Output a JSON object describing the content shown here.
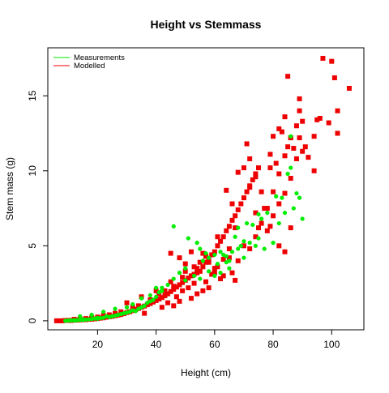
{
  "chart_data": {
    "type": "scatter",
    "title": "Height vs Stemmass",
    "xlabel": "Height (cm)",
    "ylabel": "Stem mass (g)",
    "xlim": [
      3,
      111
    ],
    "ylim": [
      -0.6,
      18.2
    ],
    "x_ticks": [
      20,
      40,
      60,
      80,
      100
    ],
    "x_tick_labels": [
      "20",
      "40",
      "60",
      "80",
      "100"
    ],
    "y_ticks": [
      0,
      5,
      10,
      15
    ],
    "y_tick_labels": [
      "0",
      "5",
      "10",
      "15"
    ],
    "grid": false,
    "legend_position": "top-left",
    "series": [
      {
        "name": "Measurements",
        "color": "#00ee00",
        "marker": "circle",
        "points": [
          [
            9,
            0.0
          ],
          [
            10,
            0.02
          ],
          [
            11,
            0.03
          ],
          [
            12,
            0.02
          ],
          [
            12,
            0.05
          ],
          [
            13,
            0.04
          ],
          [
            14,
            0.06
          ],
          [
            15,
            0.05
          ],
          [
            15,
            0.1
          ],
          [
            16,
            0.08
          ],
          [
            17,
            0.1
          ],
          [
            18,
            0.12
          ],
          [
            19,
            0.15
          ],
          [
            20,
            0.14
          ],
          [
            20,
            0.2
          ],
          [
            21,
            0.18
          ],
          [
            22,
            0.2
          ],
          [
            23,
            0.3
          ],
          [
            24,
            0.25
          ],
          [
            25,
            0.3
          ],
          [
            26,
            0.35
          ],
          [
            27,
            0.4
          ],
          [
            28,
            0.45
          ],
          [
            29,
            0.5
          ],
          [
            30,
            0.55
          ],
          [
            31,
            0.6
          ],
          [
            32,
            0.7
          ],
          [
            33,
            0.65
          ],
          [
            34,
            0.8
          ],
          [
            35,
            0.9
          ],
          [
            36,
            1.0
          ],
          [
            37,
            1.2
          ],
          [
            38,
            1.3
          ],
          [
            39,
            1.4
          ],
          [
            40,
            1.6
          ],
          [
            41,
            1.9
          ],
          [
            42,
            2.2
          ],
          [
            44,
            2.4
          ],
          [
            46,
            2.8
          ],
          [
            46,
            6.3
          ],
          [
            48,
            3.2
          ],
          [
            50,
            3.5
          ],
          [
            51,
            5.5
          ],
          [
            53,
            3.0
          ],
          [
            54,
            5.2
          ],
          [
            55,
            4.8
          ],
          [
            56,
            4.0
          ],
          [
            57,
            4.5
          ],
          [
            58,
            4.2
          ],
          [
            60,
            4.4
          ],
          [
            61,
            3.8
          ],
          [
            62,
            4.6
          ],
          [
            63,
            4.4
          ],
          [
            64,
            4.3
          ],
          [
            65,
            4.0
          ],
          [
            66,
            4.6
          ],
          [
            67,
            5.6
          ],
          [
            68,
            6.2
          ],
          [
            69,
            5.0
          ],
          [
            70,
            5.3
          ],
          [
            71,
            6.5
          ],
          [
            72,
            5.2
          ],
          [
            73,
            6.4
          ],
          [
            74,
            5.0
          ],
          [
            75,
            7.1
          ],
          [
            76,
            6.8
          ],
          [
            77,
            4.8
          ],
          [
            78,
            7.2
          ],
          [
            80,
            5.2
          ],
          [
            81,
            8.3
          ],
          [
            82,
            6.5
          ],
          [
            83,
            8.2
          ],
          [
            84,
            7.2
          ],
          [
            85,
            9.8
          ],
          [
            86,
            10.2
          ],
          [
            86,
            12.3
          ],
          [
            87,
            7.5
          ],
          [
            88,
            8.5
          ],
          [
            89,
            8.2
          ],
          [
            90,
            6.8
          ],
          [
            30,
            0.9
          ],
          [
            35,
            1.5
          ],
          [
            40,
            2.2
          ],
          [
            55,
            2.8
          ],
          [
            60,
            3.0
          ],
          [
            65,
            3.5
          ],
          [
            70,
            4.2
          ],
          [
            75,
            5.5
          ],
          [
            62,
            3.2
          ],
          [
            68,
            4.8
          ],
          [
            14,
            0.3
          ],
          [
            18,
            0.4
          ],
          [
            22,
            0.6
          ],
          [
            26,
            0.8
          ],
          [
            32,
            1.1
          ],
          [
            38,
            1.7
          ],
          [
            42,
            2.0
          ],
          [
            50,
            2.7
          ],
          [
            58,
            3.3
          ],
          [
            64,
            3.9
          ]
        ]
      },
      {
        "name": "Modelled",
        "color": "#ee0000",
        "marker": "square",
        "points": [
          [
            6,
            0.0
          ],
          [
            7,
            0.0
          ],
          [
            8,
            0.0
          ],
          [
            9,
            0.02
          ],
          [
            10,
            0.03
          ],
          [
            11,
            0.02
          ],
          [
            12,
            0.04
          ],
          [
            13,
            0.05
          ],
          [
            14,
            0.06
          ],
          [
            15,
            0.07
          ],
          [
            16,
            0.08
          ],
          [
            17,
            0.1
          ],
          [
            18,
            0.11
          ],
          [
            19,
            0.13
          ],
          [
            20,
            0.15
          ],
          [
            21,
            0.18
          ],
          [
            22,
            0.2
          ],
          [
            23,
            0.24
          ],
          [
            24,
            0.27
          ],
          [
            25,
            0.3
          ],
          [
            26,
            0.34
          ],
          [
            27,
            0.38
          ],
          [
            28,
            0.42
          ],
          [
            29,
            0.48
          ],
          [
            30,
            0.55
          ],
          [
            31,
            0.6
          ],
          [
            32,
            0.68
          ],
          [
            33,
            0.75
          ],
          [
            34,
            0.82
          ],
          [
            35,
            0.9
          ],
          [
            36,
            0.98
          ],
          [
            37,
            1.07
          ],
          [
            38,
            1.15
          ],
          [
            39,
            1.25
          ],
          [
            40,
            1.35
          ],
          [
            41,
            1.45
          ],
          [
            42,
            1.55
          ],
          [
            43,
            1.67
          ],
          [
            44,
            1.8
          ],
          [
            45,
            1.95
          ],
          [
            46,
            2.1
          ],
          [
            47,
            2.25
          ],
          [
            48,
            2.4
          ],
          [
            49,
            2.55
          ],
          [
            50,
            2.7
          ],
          [
            51,
            2.85
          ],
          [
            52,
            3.0
          ],
          [
            53,
            3.1
          ],
          [
            54,
            3.2
          ],
          [
            55,
            3.3
          ],
          [
            56,
            3.6
          ],
          [
            57,
            3.9
          ],
          [
            58,
            4.1
          ],
          [
            59,
            4.4
          ],
          [
            60,
            4.6
          ],
          [
            61,
            5.0
          ],
          [
            62,
            5.3
          ],
          [
            63,
            5.6
          ],
          [
            64,
            6.0
          ],
          [
            65,
            6.3
          ],
          [
            66,
            6.7
          ],
          [
            67,
            7.0
          ],
          [
            68,
            7.4
          ],
          [
            69,
            7.8
          ],
          [
            70,
            8.2
          ],
          [
            71,
            8.6
          ],
          [
            72,
            9.0
          ],
          [
            73,
            9.4
          ],
          [
            74,
            9.8
          ],
          [
            75,
            10.2
          ],
          [
            30,
            1.2
          ],
          [
            35,
            1.6
          ],
          [
            40,
            2.0
          ],
          [
            45,
            2.6
          ],
          [
            50,
            3.3
          ],
          [
            55,
            3.9
          ],
          [
            60,
            3.5
          ],
          [
            65,
            4.2
          ],
          [
            70,
            5.0
          ],
          [
            75,
            6.2
          ],
          [
            36,
            0.5
          ],
          [
            42,
            0.9
          ],
          [
            46,
            1.0
          ],
          [
            48,
            1.3
          ],
          [
            52,
            1.5
          ],
          [
            54,
            1.8
          ],
          [
            56,
            2.0
          ],
          [
            58,
            2.2
          ],
          [
            62,
            2.8
          ],
          [
            66,
            3.2
          ],
          [
            68,
            4.0
          ],
          [
            72,
            4.8
          ],
          [
            74,
            5.6
          ],
          [
            76,
            6.5
          ],
          [
            78,
            7.5
          ],
          [
            80,
            8.6
          ],
          [
            82,
            9.8
          ],
          [
            84,
            11.0
          ],
          [
            86,
            12.2
          ],
          [
            88,
            13.0
          ],
          [
            78,
            6.0
          ],
          [
            80,
            7.0
          ],
          [
            82,
            7.8
          ],
          [
            84,
            8.5
          ],
          [
            86,
            9.5
          ],
          [
            88,
            10.8
          ],
          [
            90,
            11.3
          ],
          [
            91,
            11.6
          ],
          [
            92,
            10.9
          ],
          [
            89,
            12.2
          ],
          [
            71,
            11.8
          ],
          [
            72,
            10.8
          ],
          [
            74,
            9.6
          ],
          [
            76,
            8.6
          ],
          [
            79,
            10.2
          ],
          [
            81,
            10.5
          ],
          [
            83,
            12.6
          ],
          [
            85,
            11.6
          ],
          [
            87,
            11.5
          ],
          [
            89,
            14.0
          ],
          [
            64,
            8.7
          ],
          [
            66,
            7.8
          ],
          [
            68,
            9.9
          ],
          [
            70,
            10.2
          ],
          [
            72,
            8.9
          ],
          [
            74,
            7.2
          ],
          [
            77,
            7.5
          ],
          [
            79,
            6.3
          ],
          [
            82,
            5.0
          ],
          [
            84,
            4.6
          ],
          [
            86,
            6.2
          ],
          [
            90,
            13.3
          ],
          [
            94,
            10.0
          ],
          [
            94,
            12.3
          ],
          [
            95,
            13.4
          ],
          [
            96,
            13.5
          ],
          [
            97,
            17.5
          ],
          [
            99,
            13.2
          ],
          [
            100,
            17.3
          ],
          [
            101,
            16.2
          ],
          [
            102,
            14.0
          ],
          [
            102,
            12.5
          ],
          [
            106,
            15.5
          ],
          [
            85,
            16.3
          ],
          [
            89,
            14.8
          ],
          [
            86,
            12.2
          ],
          [
            84,
            13.6
          ],
          [
            82,
            12.8
          ],
          [
            80,
            12.3
          ],
          [
            79,
            11.1
          ],
          [
            45,
            4.5
          ],
          [
            48,
            4.2
          ],
          [
            50,
            3.8
          ],
          [
            52,
            4.6
          ],
          [
            54,
            3.5
          ],
          [
            56,
            4.5
          ],
          [
            58,
            3.9
          ],
          [
            60,
            3.2
          ],
          [
            63,
            3.0
          ],
          [
            67,
            2.7
          ],
          [
            44,
            1.2
          ],
          [
            47,
            1.6
          ],
          [
            49,
            2.0
          ],
          [
            51,
            2.2
          ],
          [
            53,
            2.5
          ],
          [
            57,
            2.6
          ],
          [
            59,
            3.1
          ],
          [
            61,
            3.6
          ],
          [
            63,
            4.1
          ],
          [
            65,
            4.8
          ],
          [
            12,
            0.1
          ],
          [
            14,
            0.12
          ],
          [
            16,
            0.15
          ],
          [
            18,
            0.2
          ],
          [
            20,
            0.25
          ],
          [
            22,
            0.35
          ],
          [
            24,
            0.4
          ],
          [
            26,
            0.5
          ],
          [
            28,
            0.6
          ],
          [
            32,
            0.9
          ],
          [
            34,
            1.0
          ],
          [
            38,
            1.4
          ],
          [
            41,
            1.8
          ],
          [
            43,
            2.0
          ],
          [
            46,
            2.3
          ],
          [
            49,
            2.9
          ],
          [
            53,
            3.6
          ],
          [
            57,
            4.3
          ],
          [
            61,
            5.6
          ],
          [
            67,
            6.2
          ]
        ]
      }
    ]
  }
}
